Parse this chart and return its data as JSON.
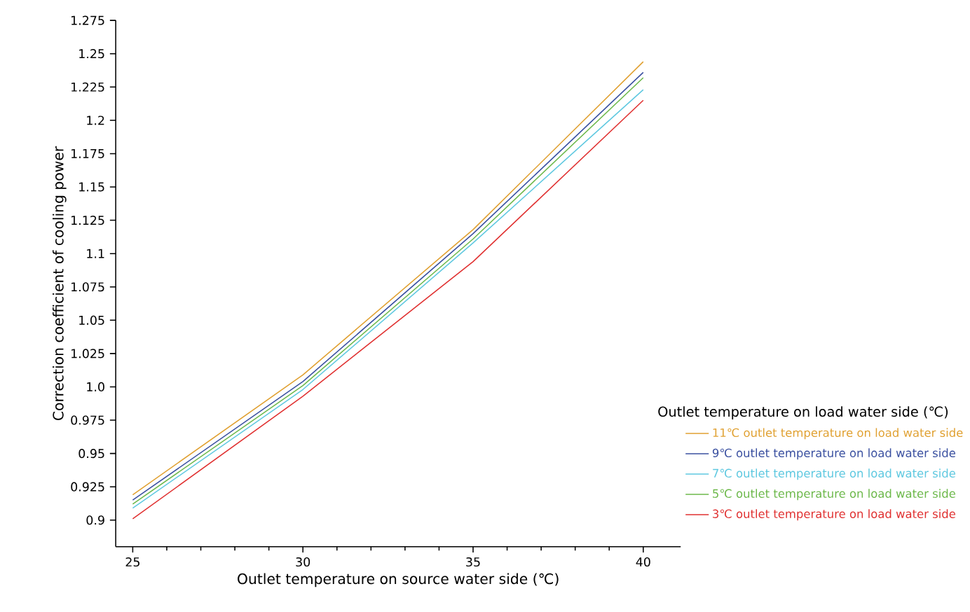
{
  "chart_data": {
    "type": "line",
    "xlabel": "Outlet temperature on source water side (℃)",
    "ylabel": "Correction coefficient of cooling power",
    "legend_title": "Outlet temperature on load water side (℃)",
    "x": [
      25,
      30,
      35,
      40
    ],
    "series": [
      {
        "name": "11℃  outlet temperature on load water side",
        "color": "#e0a030",
        "values": [
          0.919,
          1.009,
          1.118,
          1.244
        ]
      },
      {
        "name": "9℃  outlet temperature on load water side",
        "color": "#3a50a0",
        "values": [
          0.915,
          1.004,
          1.115,
          1.236
        ]
      },
      {
        "name": "7℃  outlet temperature on load water side",
        "color": "#5ec8e0",
        "values": [
          0.909,
          0.998,
          1.108,
          1.223
        ]
      },
      {
        "name": "5℃  outlet temperature on load water side",
        "color": "#6cb84a",
        "values": [
          0.912,
          1.001,
          1.111,
          1.232
        ]
      },
      {
        "name": "3℃  outlet temperature on load water side",
        "color": "#e03030",
        "values": [
          0.901,
          0.993,
          1.094,
          1.215
        ]
      }
    ],
    "xlim": [
      24.5,
      41.1
    ],
    "ylim": [
      0.88,
      1.275
    ],
    "xticks": [
      25,
      30,
      35,
      40
    ],
    "yticks": [
      0.9,
      0.925,
      0.95,
      0.975,
      {
        "value": 1,
        "label": "1.0"
      },
      1.025,
      1.05,
      1.075,
      1.1,
      1.125,
      1.15,
      1.175,
      1.2,
      1.225,
      1.25,
      1.275
    ],
    "legend": "right",
    "grid": false,
    "marker": "none",
    "line_style": "solid"
  }
}
